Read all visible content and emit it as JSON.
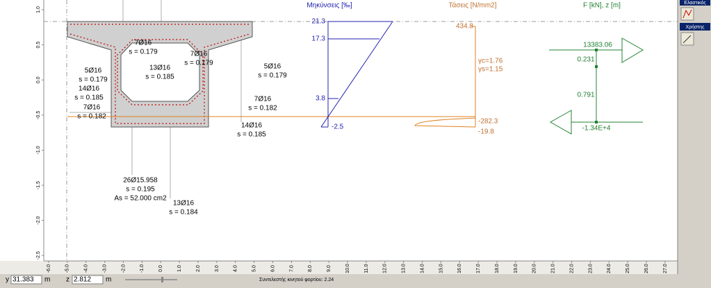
{
  "canvas": {
    "y_ticks": [
      "1.0",
      "0.5",
      "0.0",
      "-0.5",
      "-1.0",
      "-1.5",
      "-2.0",
      "-2.5"
    ],
    "x_ticks": [
      "-6.0",
      "-5.0",
      "-4.0",
      "-3.0",
      "-2.0",
      "-1.0",
      "0.0",
      "1.0",
      "2.0",
      "3.0",
      "4.0",
      "5.0",
      "6.0",
      "7.0",
      "8.0",
      "9.0",
      "10.0",
      "11.0",
      "12.0",
      "13.0",
      "14.0",
      "15.0",
      "16.0",
      "17.0",
      "18.0",
      "19.0",
      "20.0",
      "21.0",
      "22.0",
      "23.0",
      "24.0",
      "25.0",
      "26.0",
      "27.0"
    ]
  },
  "section": {
    "rebars": [
      {
        "bars": "7Ø16",
        "spacing": "s = 0.179"
      },
      {
        "bars": "13Ø16",
        "spacing": "s = 0.185"
      },
      {
        "bars": "7Ø16",
        "spacing": "s = 0.179"
      },
      {
        "bars": "5Ø16",
        "spacing": "s = 0.179"
      },
      {
        "bars": "14Ø16",
        "spacing": "s = 0.185"
      },
      {
        "bars": "7Ø16",
        "spacing": "s = 0.182"
      },
      {
        "bars": "5Ø16",
        "spacing": "s = 0.179"
      },
      {
        "bars": "7Ø16",
        "spacing": "s = 0.182"
      },
      {
        "bars": "14Ø16",
        "spacing": "s = 0.185"
      },
      {
        "bars": "26Ø15.958",
        "spacing": "s = 0.195"
      },
      {
        "bars": "13Ø16",
        "spacing": "s = 0.184"
      }
    ],
    "steel_area": "As = 52.000 cm2"
  },
  "strain": {
    "title": "Μηκύνσεις [‰]",
    "labels": [
      "21.3",
      "17.3",
      "3.8",
      "-2.5"
    ]
  },
  "stress": {
    "title": "Τάσεις [N/mm2]",
    "labels": [
      "434.8",
      "-282.3",
      "-19.8"
    ],
    "gamma_c": "γc=1.76",
    "gamma_s": "γs=1.15"
  },
  "forces": {
    "title": "F [kN], z [m]",
    "tension": "13383.06",
    "compression": "-1.34E+4",
    "z1": "0.231",
    "z2": "0.791"
  },
  "status_bar": {
    "y_label": "y",
    "y_value": "31.383",
    "y_unit": "m",
    "z_label": "z",
    "z_value": "2.812",
    "z_unit": "m",
    "message": "Συντελεστής κινητού φορτίου: 2.24"
  },
  "side_panel": {
    "elastic": "Ελαστικός",
    "user": "Χρήστης"
  }
}
